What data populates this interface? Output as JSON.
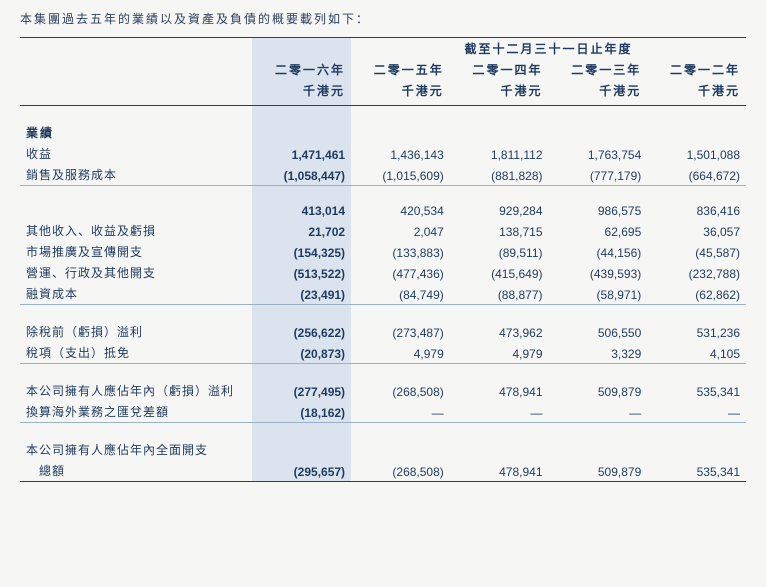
{
  "intro": "本集團過去五年的業績以及資產及負債的概要載列如下：",
  "header": {
    "span_title": "截至十二月三十一日止年度",
    "years": [
      "二零一六年",
      "二零一五年",
      "二零一四年",
      "二零一三年",
      "二零一二年"
    ],
    "unit": "千港元"
  },
  "section_performance": "業績",
  "rows": {
    "revenue": {
      "label": "收益",
      "v": [
        "1,471,461",
        "1,436,143",
        "1,811,112",
        "1,763,754",
        "1,501,088"
      ]
    },
    "cogs": {
      "label": "銷售及服務成本",
      "v": [
        "(1,058,447)",
        "(1,015,609)",
        "(881,828)",
        "(777,179)",
        "(664,672)"
      ]
    },
    "gross": {
      "label": "",
      "v": [
        "413,014",
        "420,534",
        "929,284",
        "986,575",
        "836,416"
      ]
    },
    "other_inc": {
      "label": "其他收入、收益及虧損",
      "v": [
        "21,702",
        "2,047",
        "138,715",
        "62,695",
        "36,057"
      ]
    },
    "marketing": {
      "label": "市場推廣及宣傳開支",
      "v": [
        "(154,325)",
        "(133,883)",
        "(89,511)",
        "(44,156)",
        "(45,587)"
      ]
    },
    "admin": {
      "label": "營運、行政及其他開支",
      "v": [
        "(513,522)",
        "(477,436)",
        "(415,649)",
        "(439,593)",
        "(232,788)"
      ]
    },
    "finance": {
      "label": "融資成本",
      "v": [
        "(23,491)",
        "(84,749)",
        "(88,877)",
        "(58,971)",
        "(62,862)"
      ]
    },
    "pbt": {
      "label": "除稅前（虧損）溢利",
      "v": [
        "(256,622)",
        "(273,487)",
        "473,962",
        "506,550",
        "531,236"
      ]
    },
    "tax": {
      "label": "稅項（支出）抵免",
      "v": [
        "(20,873)",
        "4,979",
        "4,979",
        "3,329",
        "4,105"
      ]
    },
    "attr": {
      "label": "本公司擁有人應佔年內（虧損）溢利",
      "v": [
        "(277,495)",
        "(268,508)",
        "478,941",
        "509,879",
        "535,341"
      ]
    },
    "fx": {
      "label": "換算海外業務之匯兌差額",
      "v": [
        "(18,162)",
        "—",
        "—",
        "—",
        "—"
      ]
    },
    "total1": {
      "label": "本公司擁有人應佔年內全面開支",
      "v": [
        "",
        "",
        "",
        "",
        ""
      ]
    },
    "total2": {
      "label": "　總額",
      "v": [
        "(295,657)",
        "(268,508)",
        "478,941",
        "509,879",
        "535,341"
      ]
    }
  },
  "colors": {
    "highlight_bg": "#dbe4ee",
    "text": "#1e3a5f",
    "rule": "#2b3f5c"
  }
}
